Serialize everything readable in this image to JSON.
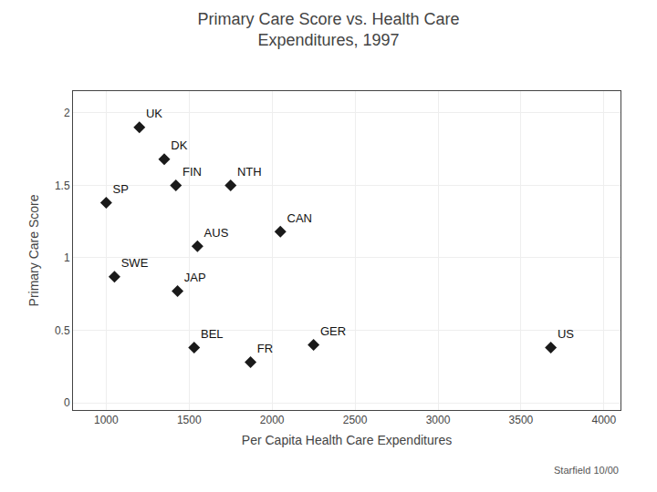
{
  "chart_data": {
    "type": "scatter",
    "title": "Primary Care Score vs. Health Care\nExpenditures, 1997",
    "xlabel": "Per Capita Health Care Expenditures",
    "ylabel": "Primary Care Score",
    "labels": [
      "UK",
      "DK",
      "NTH",
      "SP",
      "FIN",
      "AUS",
      "CAN",
      "SWE",
      "JAP",
      "BEL",
      "FR",
      "GER",
      "US"
    ],
    "x": [
      1200,
      1350,
      1750,
      1000,
      1420,
      1550,
      2050,
      1050,
      1430,
      1530,
      1870,
      2250,
      3680
    ],
    "values": [
      1.9,
      1.68,
      1.5,
      1.38,
      1.5,
      1.08,
      1.18,
      0.87,
      0.77,
      0.38,
      0.28,
      0.4,
      0.38
    ],
    "xlim": [
      800,
      4100
    ],
    "xticks": [
      1000,
      1500,
      2000,
      2500,
      3000,
      3500,
      4000
    ],
    "ylim": [
      -0.05,
      2.15
    ],
    "yticks": [
      0,
      0.5,
      1,
      1.5,
      2
    ],
    "marker": "diamond",
    "color": "#1a1a1a",
    "grid": true,
    "annotations": [
      "Starfield 10/00"
    ]
  }
}
